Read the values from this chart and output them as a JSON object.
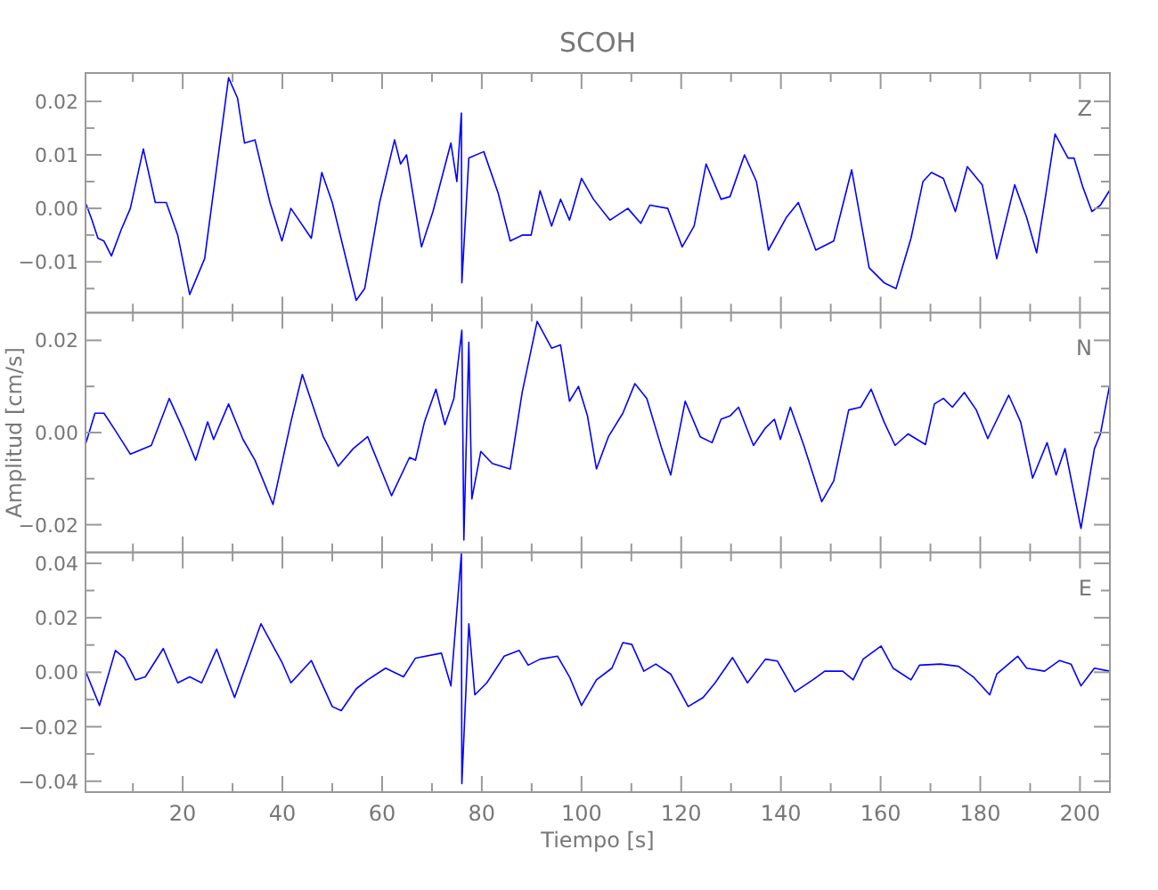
{
  "chart_data": [
    {
      "type": "line",
      "title": "SCOH",
      "annotations": [
        "Z"
      ],
      "tick_labels": "y",
      "grid": false,
      "marker": "none",
      "line_style": "solid",
      "xlim": [
        0.5,
        206
      ],
      "ylim": [
        -0.0195,
        0.0253
      ],
      "xticks": [
        {
          "value": 10,
          "label": null
        },
        20,
        {
          "value": 30,
          "label": null
        },
        40,
        {
          "value": 50,
          "label": null
        },
        60,
        {
          "value": 70,
          "label": null
        },
        80,
        {
          "value": 90,
          "label": null
        },
        100,
        {
          "value": 110,
          "label": null
        },
        120,
        {
          "value": 130,
          "label": null
        },
        140,
        {
          "value": 150,
          "label": null
        },
        160,
        {
          "value": 170,
          "label": null
        },
        180,
        {
          "value": 190,
          "label": null
        },
        200
      ],
      "yticks": [
        {
          "value": -0.015,
          "label": null
        },
        {
          "value": -0.01,
          "label": "−0.01"
        },
        {
          "value": -0.005,
          "label": null
        },
        {
          "value": 0,
          "label": "0.00"
        },
        {
          "value": 0.005,
          "label": null
        },
        0.01,
        {
          "value": 0.015,
          "label": null
        },
        0.02
      ],
      "series": [
        {
          "color": "#0000ff",
          "x": [
            0.6,
            1.8,
            3.0,
            4.2,
            5.7,
            7.7,
            9.5,
            12.1,
            14.5,
            16.7,
            19,
            21.4,
            24.4,
            29.2,
            31,
            32.4,
            34.5,
            37.5,
            39.9,
            41.7,
            45.8,
            47.9,
            50,
            54.8,
            56.5,
            59.5,
            62.5,
            63.7,
            64.9,
            67.9,
            70.2,
            73.8,
            75,
            75.9,
            76,
            77.4,
            80.4,
            83.3,
            85.7,
            88.1,
            89.9,
            91.7,
            94,
            95.8,
            97.6,
            100,
            102.4,
            105.7,
            109.3,
            111.9,
            113.7,
            117.3,
            120.2,
            122.6,
            125,
            128,
            129.8,
            132.7,
            135.1,
            137.5,
            141.1,
            143.5,
            147,
            150.6,
            154.2,
            157.7,
            160.7,
            163.1,
            166.1,
            168.5,
            170.2,
            172.6,
            175,
            177.4,
            180.4,
            183.3,
            186.9,
            189.3,
            191.3,
            192.9,
            195,
            197.6,
            198.8,
            200.6,
            202.4,
            204.1,
            205.9
          ],
          "values": [
            0.0008,
            -0.0022,
            -0.0056,
            -0.0061,
            -0.0089,
            -0.0039,
            0,
            0.0111,
            0.0011,
            0.0011,
            -0.005,
            -0.0161,
            -0.0094,
            0.0244,
            0.0206,
            0.0122,
            0.0128,
            0.0011,
            -0.0061,
            0,
            -0.0056,
            0.0067,
            0.0011,
            -0.0172,
            -0.015,
            0.0011,
            0.0128,
            0.0083,
            0.01,
            -0.0072,
            -0.0006,
            0.0122,
            0.005,
            0.0178,
            -0.0139,
            0.0094,
            0.0106,
            0.0028,
            -0.0061,
            -0.005,
            -0.005,
            0.0033,
            -0.0033,
            0.0017,
            -0.0022,
            0.0056,
            0.0017,
            -0.0022,
            0,
            -0.0028,
            0.0006,
            0,
            -0.0072,
            -0.0033,
            0.0083,
            0.0017,
            0.0022,
            0.01,
            0.005,
            -0.0078,
            -0.0017,
            0.0011,
            -0.0078,
            -0.0061,
            0.0072,
            -0.0111,
            -0.0139,
            -0.015,
            -0.0056,
            0.005,
            0.0067,
            0.0056,
            -0.0006,
            0.0078,
            0.0044,
            -0.0094,
            0.0044,
            -0.0017,
            -0.0083,
            0.0011,
            0.0139,
            0.0094,
            0.0094,
            0.0039,
            -0.0006,
            0.0006,
            0.0033
          ]
        }
      ]
    },
    {
      "type": "line",
      "ylabel": "Amplitud [cm/s]",
      "annotations": [
        "N"
      ],
      "tick_labels": "y",
      "grid": false,
      "marker": "none",
      "line_style": "solid",
      "xlim": [
        0.5,
        206
      ],
      "ylim": [
        -0.026,
        0.026
      ],
      "xticks": [
        {
          "value": 10,
          "label": null
        },
        20,
        {
          "value": 30,
          "label": null
        },
        40,
        {
          "value": 50,
          "label": null
        },
        60,
        {
          "value": 70,
          "label": null
        },
        80,
        {
          "value": 90,
          "label": null
        },
        100,
        {
          "value": 110,
          "label": null
        },
        120,
        {
          "value": 130,
          "label": null
        },
        140,
        {
          "value": 150,
          "label": null
        },
        160,
        {
          "value": 170,
          "label": null
        },
        180,
        {
          "value": 190,
          "label": null
        },
        200
      ],
      "yticks": [
        {
          "value": -0.02,
          "label": "−0.02"
        },
        {
          "value": -0.01,
          "label": null
        },
        {
          "value": 0,
          "label": "0.00"
        },
        {
          "value": 0.01,
          "label": null
        },
        0.02
      ],
      "series": [
        {
          "color": "#0000ff",
          "x": [
            0.6,
            2.4,
            4.2,
            6.5,
            9.5,
            13.7,
            17.3,
            20.2,
            22.6,
            25,
            26.2,
            29.2,
            32.1,
            34.5,
            38.1,
            41.7,
            44,
            48.2,
            51.2,
            54.2,
            57.1,
            61.9,
            65.5,
            66.7,
            68.5,
            70.8,
            72.6,
            74.4,
            76,
            76.4,
            77.4,
            78,
            79.8,
            82.1,
            85.7,
            88.1,
            91.1,
            94,
            95.8,
            97.6,
            99.4,
            101.2,
            103,
            105.4,
            108.3,
            110.7,
            113.1,
            116.1,
            117.9,
            120.8,
            123.8,
            126.2,
            128,
            129.8,
            131.5,
            134.5,
            136.9,
            138.7,
            139.9,
            141.9,
            144.6,
            148.2,
            150.6,
            153.6,
            156,
            158.1,
            160.7,
            162.9,
            165.5,
            169,
            170.8,
            172.6,
            174.4,
            176.8,
            179.2,
            181.5,
            185.7,
            188.1,
            190.5,
            193.4,
            195.2,
            197,
            200.2,
            202.9,
            204.1,
            205.9
          ],
          "values": [
            -0.0022,
            0.0042,
            0.0042,
            0.0004,
            -0.0047,
            -0.0028,
            0.0074,
            0.0004,
            -0.006,
            0.0023,
            -0.0015,
            0.0062,
            -0.0015,
            -0.006,
            -0.0156,
            0.0023,
            0.0126,
            -0.0009,
            -0.0073,
            -0.0035,
            -0.0009,
            -0.0137,
            -0.0054,
            -0.006,
            0.0023,
            0.0094,
            0.0017,
            0.0074,
            0.0222,
            -0.0233,
            0.0196,
            -0.0144,
            -0.0041,
            -0.0067,
            -0.0079,
            0.0087,
            0.0241,
            0.0183,
            0.019,
            0.0068,
            0.01,
            0.0036,
            -0.0079,
            -0.0009,
            0.0042,
            0.0106,
            0.0074,
            -0.0035,
            -0.0092,
            0.0068,
            -0.0009,
            -0.0022,
            0.0029,
            0.0036,
            0.0055,
            -0.0028,
            0.001,
            0.0029,
            -0.0015,
            0.0055,
            -0.0028,
            -0.015,
            -0.0105,
            0.0049,
            0.0055,
            0.0094,
            0.0023,
            -0.0028,
            -0.0003,
            -0.0026,
            0.0062,
            0.0074,
            0.0055,
            0.0087,
            0.0049,
            -0.0013,
            0.0081,
            0.0023,
            -0.0099,
            -0.0022,
            -0.0092,
            -0.0035,
            -0.0208,
            -0.0035,
            -0.0003,
            0.01
          ]
        }
      ]
    },
    {
      "type": "line",
      "xlabel": "Tiempo [s]",
      "annotations": [
        "E"
      ],
      "grid": false,
      "marker": "none",
      "line_style": "solid",
      "xlim": [
        0.5,
        206
      ],
      "ylim": [
        -0.044,
        0.044
      ],
      "xticks": [
        {
          "value": 10,
          "label": null
        },
        20,
        {
          "value": 30,
          "label": null
        },
        40,
        {
          "value": 50,
          "label": null
        },
        60,
        {
          "value": 70,
          "label": null
        },
        80,
        {
          "value": 90,
          "label": null
        },
        100,
        {
          "value": 110,
          "label": null
        },
        120,
        {
          "value": 130,
          "label": null
        },
        140,
        {
          "value": 150,
          "label": null
        },
        160,
        {
          "value": 170,
          "label": null
        },
        180,
        {
          "value": 190,
          "label": null
        },
        200
      ],
      "yticks": [
        {
          "value": -0.04,
          "label": "−0.04"
        },
        {
          "value": -0.03,
          "label": null
        },
        {
          "value": -0.02,
          "label": "−0.02"
        },
        {
          "value": -0.01,
          "label": null
        },
        {
          "value": 0,
          "label": "0.00"
        },
        {
          "value": 0.01,
          "label": null
        },
        0.02,
        {
          "value": 0.03,
          "label": null
        },
        0.04
      ],
      "series": [
        {
          "color": "#0000ff",
          "x": [
            0.6,
            3.3,
            6.5,
            8.3,
            10.5,
            12.5,
            16.1,
            19,
            21.4,
            23.8,
            26.8,
            30.4,
            35.7,
            39.9,
            41.7,
            45.8,
            50,
            51.8,
            54.8,
            57.1,
            60.7,
            64.3,
            66.7,
            71.9,
            73.8,
            75.9,
            76,
            77.4,
            78.6,
            81,
            84.5,
            87.5,
            89.3,
            91.7,
            95.2,
            97.6,
            100,
            103,
            106.1,
            108.3,
            110.1,
            112.5,
            114.9,
            117.9,
            121.4,
            124.4,
            126.8,
            130.3,
            133.3,
            136.9,
            139.3,
            142.8,
            146.4,
            148.8,
            152.4,
            154.5,
            156.5,
            160.1,
            162.5,
            166.1,
            167.8,
            172,
            175.6,
            178.6,
            181.9,
            183.3,
            187.5,
            189.3,
            192.9,
            195.9,
            198.2,
            200.2,
            202.9,
            205.9
          ],
          "values": [
            0,
            -0.0122,
            0.008,
            0.0052,
            -0.0028,
            -0.0017,
            0.0087,
            -0.0039,
            -0.0017,
            -0.0039,
            0.0085,
            -0.0093,
            0.0178,
            0.0037,
            -0.0039,
            0.0043,
            -0.0126,
            -0.0141,
            -0.0061,
            -0.0028,
            0.0015,
            -0.0017,
            0.0052,
            0.007,
            -0.005,
            0.0435,
            -0.0409,
            0.0178,
            -0.0083,
            -0.0039,
            0.0059,
            0.008,
            0.0026,
            0.0048,
            0.0059,
            -0.0017,
            -0.0122,
            -0.0028,
            0.0015,
            0.0109,
            0.0102,
            0.0004,
            0.003,
            -0.0007,
            -0.0126,
            -0.0093,
            -0.0039,
            0.0054,
            -0.0039,
            0.0048,
            0.0041,
            -0.0072,
            -0.0028,
            0.0004,
            0.0004,
            -0.0028,
            0.0048,
            0.0096,
            0.0015,
            -0.0028,
            0.0026,
            0.003,
            0.0022,
            -0.0017,
            -0.0083,
            -0.0007,
            0.0059,
            0.0015,
            0.0004,
            0.0043,
            0.003,
            -0.005,
            0.0015,
            0.0004
          ]
        }
      ]
    }
  ]
}
